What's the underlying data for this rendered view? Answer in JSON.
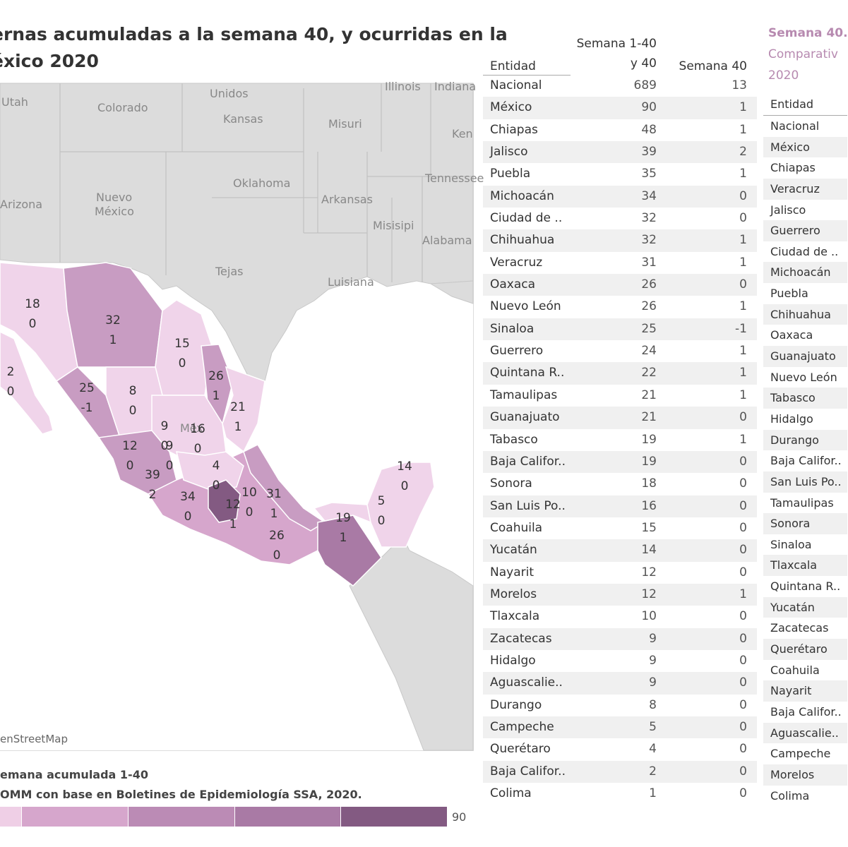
{
  "title": {
    "line1": "ernas acumuladas a la semana 40, y ocurridas en la",
    "line2": "éxico 2020"
  },
  "map": {
    "attribution": "enStreetMap",
    "legend_title": "emana acumulada 1-40",
    "source": "OMM con base en Boletines de Epidemiología SSA, 2020.",
    "scale_max": "90",
    "scale_colors": [
      "#efcfe6",
      "#d6a6cc",
      "#bb8bb5",
      "#a97aa5",
      "#835a82"
    ],
    "base_labels": [
      {
        "name": "Unidos",
        "big": true
      },
      {
        "name": "Illinois"
      },
      {
        "name": "Indiana"
      },
      {
        "name": "Utah"
      },
      {
        "name": "Colorado"
      },
      {
        "name": "Kansas"
      },
      {
        "name": "Misuri"
      },
      {
        "name": "Ken"
      },
      {
        "name": "Oklahoma"
      },
      {
        "name": "Tennessee"
      },
      {
        "name": "Arizona"
      },
      {
        "name": "Nuevo"
      },
      {
        "name": "México"
      },
      {
        "name": "Arkansas"
      },
      {
        "name": "Misisipi"
      },
      {
        "name": "Alabama"
      },
      {
        "name": "Tejas"
      },
      {
        "name": "Luisiana"
      },
      {
        "name": "Méx"
      }
    ],
    "state_labels": [
      {
        "v1": "18",
        "v2": "0"
      },
      {
        "v1": "32",
        "v2": "1"
      },
      {
        "v1": "15",
        "v2": "0"
      },
      {
        "v1": "26",
        "v2": "1"
      },
      {
        "v1": "2",
        "v2": "0"
      },
      {
        "v1": "25",
        "v2": "-1"
      },
      {
        "v1": "8",
        "v2": "0"
      },
      {
        "v1": "21",
        "v2": "1"
      },
      {
        "v1": "9",
        "v2": "0"
      },
      {
        "v1": "16",
        "v2": "0"
      },
      {
        "v1": "9",
        "v2": "0"
      },
      {
        "v1": "12",
        "v2": "0"
      },
      {
        "v1": "4",
        "v2": "0"
      },
      {
        "v1": "39",
        "v2": ""
      },
      {
        "v1": "2",
        "v2": ""
      },
      {
        "v1": "34",
        "v2": "0"
      },
      {
        "v1": "12",
        "v2": "1"
      },
      {
        "v1": "10",
        "v2": "0"
      },
      {
        "v1": "31",
        "v2": "1"
      },
      {
        "v1": "26",
        "v2": "0"
      },
      {
        "v1": "14",
        "v2": "0"
      },
      {
        "v1": "5",
        "v2": "0"
      },
      {
        "v1": "19",
        "v2": "1"
      }
    ]
  },
  "table1": {
    "header_entidad": "Entidad",
    "header_c1_line1": "Semana 1-40",
    "header_c1_line2": "y 40",
    "header_c2": "Semana 40",
    "rows": [
      {
        "entidad": "Nacional",
        "acum": "689",
        "sem40": "13"
      },
      {
        "entidad": "México",
        "acum": "90",
        "sem40": "1"
      },
      {
        "entidad": "Chiapas",
        "acum": "48",
        "sem40": "1"
      },
      {
        "entidad": "Jalisco",
        "acum": "39",
        "sem40": "2"
      },
      {
        "entidad": "Puebla",
        "acum": "35",
        "sem40": "1"
      },
      {
        "entidad": "Michoacán",
        "acum": "34",
        "sem40": "0"
      },
      {
        "entidad": "Ciudad de ..",
        "acum": "32",
        "sem40": "0"
      },
      {
        "entidad": "Chihuahua",
        "acum": "32",
        "sem40": "1"
      },
      {
        "entidad": "Veracruz",
        "acum": "31",
        "sem40": "1"
      },
      {
        "entidad": "Oaxaca",
        "acum": "26",
        "sem40": "0"
      },
      {
        "entidad": "Nuevo León",
        "acum": "26",
        "sem40": "1"
      },
      {
        "entidad": "Sinaloa",
        "acum": "25",
        "sem40": "-1"
      },
      {
        "entidad": "Guerrero",
        "acum": "24",
        "sem40": "1"
      },
      {
        "entidad": "Quintana R..",
        "acum": "22",
        "sem40": "1"
      },
      {
        "entidad": "Tamaulipas",
        "acum": "21",
        "sem40": "1"
      },
      {
        "entidad": "Guanajuato",
        "acum": "21",
        "sem40": "0"
      },
      {
        "entidad": "Tabasco",
        "acum": "19",
        "sem40": "1"
      },
      {
        "entidad": "Baja Califor..",
        "acum": "19",
        "sem40": "0"
      },
      {
        "entidad": "Sonora",
        "acum": "18",
        "sem40": "0"
      },
      {
        "entidad": "San Luis Po..",
        "acum": "16",
        "sem40": "0"
      },
      {
        "entidad": "Coahuila",
        "acum": "15",
        "sem40": "0"
      },
      {
        "entidad": "Yucatán",
        "acum": "14",
        "sem40": "0"
      },
      {
        "entidad": "Nayarit",
        "acum": "12",
        "sem40": "0"
      },
      {
        "entidad": "Morelos",
        "acum": "12",
        "sem40": "1"
      },
      {
        "entidad": "Tlaxcala",
        "acum": "10",
        "sem40": "0"
      },
      {
        "entidad": "Zacatecas",
        "acum": "9",
        "sem40": "0"
      },
      {
        "entidad": "Hidalgo",
        "acum": "9",
        "sem40": "0"
      },
      {
        "entidad": "Aguascalie..",
        "acum": "9",
        "sem40": "0"
      },
      {
        "entidad": "Durango",
        "acum": "8",
        "sem40": "0"
      },
      {
        "entidad": "Campeche",
        "acum": "5",
        "sem40": "0"
      },
      {
        "entidad": "Querétaro",
        "acum": "4",
        "sem40": "0"
      },
      {
        "entidad": "Baja Califor..",
        "acum": "2",
        "sem40": "0"
      },
      {
        "entidad": "Colima",
        "acum": "1",
        "sem40": "0"
      }
    ]
  },
  "table2": {
    "title_line1": "Semana 40.",
    "title_line2": "Comparativ",
    "title_line3": "2020",
    "header_entidad": "Entidad",
    "rows": [
      "Nacional",
      "México",
      "Chiapas",
      "Veracruz",
      "Jalisco",
      "Guerrero",
      "Ciudad de ..",
      "Michoacán",
      "Puebla",
      "Chihuahua",
      "Oaxaca",
      "Guanajuato",
      "Nuevo León",
      "Tabasco",
      "Hidalgo",
      "Durango",
      "Baja Califor..",
      "San Luis Po..",
      "Tamaulipas",
      "Sonora",
      "Sinaloa",
      "Tlaxcala",
      "Quintana R..",
      "Yucatán",
      "Zacatecas",
      "Querétaro",
      "Coahuila",
      "Nayarit",
      "Baja Califor..",
      "Aguascalie..",
      "Campeche",
      "Morelos",
      "Colima"
    ]
  }
}
